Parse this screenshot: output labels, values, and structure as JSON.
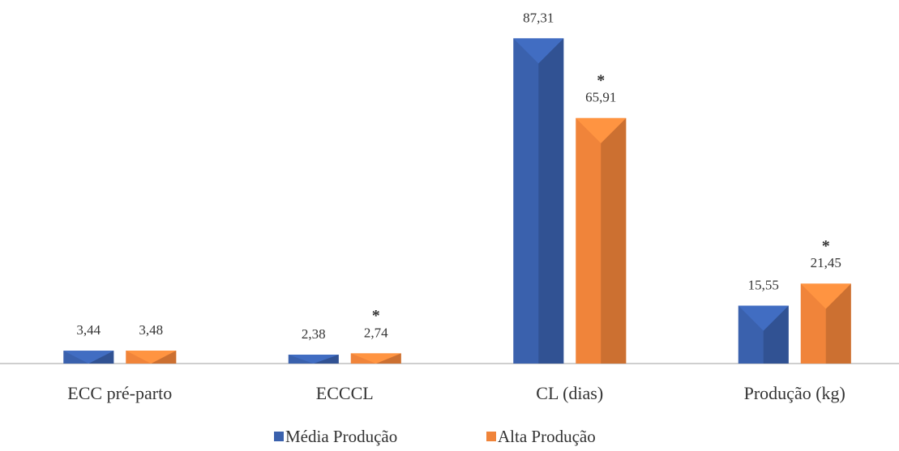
{
  "chart_data": {
    "type": "bar",
    "categories": [
      "ECC pré-parto",
      "ECCCL",
      "CL (dias)",
      "Produção (kg)"
    ],
    "series": [
      {
        "name": "Média Produção",
        "color": "#3a61ad",
        "values": [
          3.44,
          2.38,
          87.31,
          15.55
        ],
        "value_labels": [
          "3,44",
          "2,38",
          "87,31",
          "15,55"
        ]
      },
      {
        "name": "Alta Produção",
        "color": "#f0843a",
        "values": [
          3.48,
          2.74,
          65.91,
          21.45
        ],
        "value_labels": [
          "3,48",
          "2,74",
          "65,91",
          "21,45"
        ]
      }
    ],
    "annotations": [
      {
        "text": "*",
        "category": "ECCCL",
        "series": "Alta Produção"
      },
      {
        "text": "*",
        "category": "CL (dias)",
        "series": "Alta Produção"
      },
      {
        "text": "*",
        "category": "Produção (kg)",
        "series": "Alta Produção"
      }
    ],
    "legend": "bottom"
  }
}
